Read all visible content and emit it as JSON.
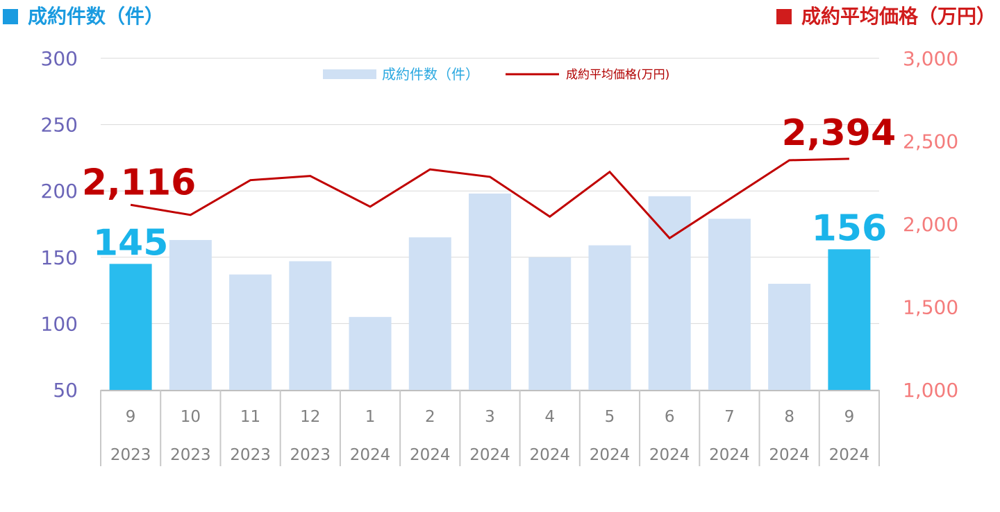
{
  "header": {
    "left_title": "成約件数（件）",
    "right_title": "成約平均価格（万円）",
    "left_color": "#1a9be0",
    "right_color": "#d01c1c"
  },
  "chart_data": {
    "type": "bar+line",
    "title": "",
    "categories": [
      {
        "month": "9",
        "year": "2023"
      },
      {
        "month": "10",
        "year": "2023"
      },
      {
        "month": "11",
        "year": "2023"
      },
      {
        "month": "12",
        "year": "2023"
      },
      {
        "month": "1",
        "year": "2024"
      },
      {
        "month": "2",
        "year": "2024"
      },
      {
        "month": "3",
        "year": "2024"
      },
      {
        "month": "4",
        "year": "2024"
      },
      {
        "month": "5",
        "year": "2024"
      },
      {
        "month": "6",
        "year": "2024"
      },
      {
        "month": "7",
        "year": "2024"
      },
      {
        "month": "8",
        "year": "2024"
      },
      {
        "month": "9",
        "year": "2024"
      }
    ],
    "series": [
      {
        "name": "成約件数（件）",
        "type": "bar",
        "axis": "left",
        "values": [
          145,
          163,
          137,
          147,
          105,
          165,
          198,
          150,
          159,
          196,
          179,
          130,
          156
        ],
        "color": "#cfe0f4",
        "highlight_color": "#29bcee",
        "highlight_indices": [
          0,
          12
        ]
      },
      {
        "name": "成約平均価格(万円)",
        "type": "line",
        "axis": "right",
        "values": [
          2116,
          2055,
          2265,
          2290,
          2105,
          2330,
          2285,
          2045,
          2315,
          1915,
          2150,
          2385,
          2394
        ],
        "color": "#c00000"
      }
    ],
    "left_axis": {
      "ylim": [
        50,
        300
      ],
      "ticks": [
        "50",
        "100",
        "150",
        "200",
        "250",
        "300"
      ]
    },
    "right_axis": {
      "ylim": [
        1000,
        3000
      ],
      "ticks": [
        "1,000",
        "1,500",
        "2,000",
        "2,500",
        "3,000"
      ]
    },
    "annotations": {
      "bar_first": "145",
      "bar_last": "156",
      "line_first": "2,116",
      "line_last": "2,394"
    },
    "legend": {
      "bar_label": "成約件数（件）",
      "line_label": "成約平均価格(万円)",
      "placement": "top-center"
    },
    "grid": true
  }
}
